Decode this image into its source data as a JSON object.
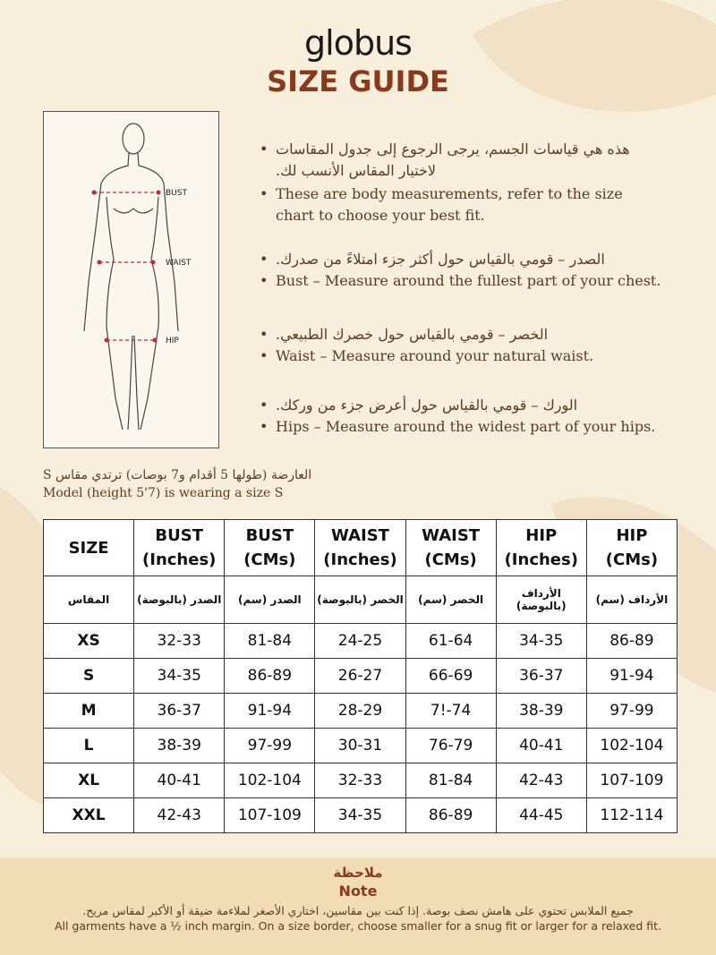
{
  "brand": "globus",
  "title": "SIZE GUIDE",
  "figure": {
    "labels": [
      "BUST",
      "WAIST",
      "HIP"
    ]
  },
  "instructions": [
    {
      "ar": "هذه هي قياسات الجسم، يرجى الرجوع إلى جدول المقاسات لاختيار المقاس الأنسب لك.",
      "en": "These are body measurements, refer to the size chart to choose your best fit."
    },
    {
      "ar": "الصدر – قومي بالقياس حول أكثر جزء امتلاءً من صدرك.",
      "en": "Bust – Measure around the fullest part of your chest."
    },
    {
      "ar": "الخصر – قومي بالقياس حول خصرك الطبيعي.",
      "en": "Waist – Measure around your natural waist."
    },
    {
      "ar": "الورك – قومي بالقياس حول أعرض جزء من وركك.",
      "en": "Hips – Measure around the widest part of your hips."
    }
  ],
  "model": {
    "ar": "العارضة (طولها 5 أقدام و7 بوصات) ترتدي مقاس S",
    "en": "Model (height 5'7) is wearing a size S"
  },
  "table": {
    "headers": [
      [
        "SIZE",
        ""
      ],
      [
        "BUST",
        "(Inches)"
      ],
      [
        "BUST",
        "(CMs)"
      ],
      [
        "WAIST",
        "(Inches)"
      ],
      [
        "WAIST",
        "(CMs)"
      ],
      [
        "HIP",
        "(Inches)"
      ],
      [
        "HIP",
        "(CMs)"
      ]
    ],
    "headers_ar": [
      "المقاس",
      "الصدر (بالبوصة)",
      "الصدر (سم)",
      "الخصر (بالبوصة)",
      "الخصر (سم)",
      "الأرداف (بالبوصة)",
      "الأرداف (سم)"
    ],
    "rows": [
      [
        "XS",
        "32-33",
        "81-84",
        "24-25",
        "61-64",
        "34-35",
        "86-89"
      ],
      [
        "S",
        "34-35",
        "86-89",
        "26-27",
        "66-69",
        "36-37",
        "91-94"
      ],
      [
        "M",
        "36-37",
        "91-94",
        "28-29",
        "7!-74",
        "38-39",
        "97-99"
      ],
      [
        "L",
        "38-39",
        "97-99",
        "30-31",
        "76-79",
        "40-41",
        "102-104"
      ],
      [
        "XL",
        "40-41",
        "102-104",
        "32-33",
        "81-84",
        "42-43",
        "107-109"
      ],
      [
        "XXL",
        "42-43",
        "107-109",
        "34-35",
        "86-89",
        "44-45",
        "112-114"
      ]
    ]
  },
  "note": {
    "title_ar": "ملاحظة",
    "title_en": "Note",
    "text_ar": "جميع الملابس تحتوي على هامش نصف بوصة. إذا كنت بين مقاسين، اختاري الأصغر لملاءمة ضيقة أو الأكبر لمقاس مريح.",
    "text_en": "All garments have a ½ inch margin. On a size border, choose smaller for a snug fit or larger for a relaxed fit."
  },
  "colors": {
    "accent": "#8a3a1c",
    "background": "#f8eedc",
    "note_band": "#f1dcb5",
    "measure_line": "#c0283a"
  }
}
